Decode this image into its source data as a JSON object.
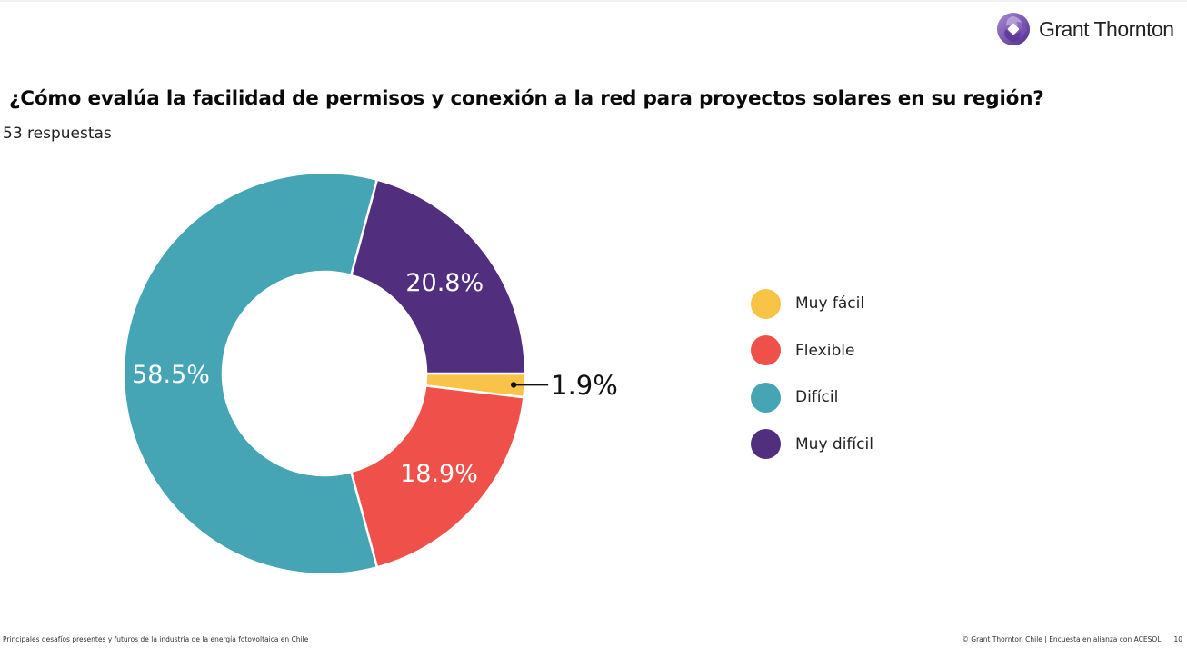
{
  "brand": {
    "name": "Grant Thornton",
    "logo_icon": "grant-thornton-swirl-icon",
    "logo_color": "#6a3fa0"
  },
  "header": {
    "title": "¿Cómo evalúa la facilidad de permisos y conexión a la red para proyectos solares en su región?",
    "responses": "53 respuestas"
  },
  "chart_data": {
    "type": "pie",
    "variant": "donut",
    "title": "¿Cómo evalúa la facilidad de permisos y conexión a la red para proyectos solares en su región?",
    "subtitle": "53 respuestas",
    "start": "3 o'clock, clockwise",
    "categories": [
      "Muy fácil",
      "Flexible",
      "Difícil",
      "Muy difícil"
    ],
    "values": [
      1.9,
      18.9,
      58.5,
      20.8
    ],
    "labels": [
      "1.9%",
      "18.9%",
      "58.5%",
      "20.8%"
    ],
    "colors": [
      "#f8c347",
      "#ef504a",
      "#45a5b4",
      "#512e7e"
    ],
    "callout_categories": [
      "Muy fácil"
    ],
    "legend": {
      "placement": "right",
      "entries": [
        "Muy fácil",
        "Flexible",
        "Difícil",
        "Muy difícil"
      ]
    }
  },
  "footer": {
    "left": "Principales desafíos presentes y futuros de la industria de la energía fotovoltaica en Chile",
    "right": "© Grant Thornton Chile | Encuesta en alianza con ACESOL",
    "page": "10"
  }
}
